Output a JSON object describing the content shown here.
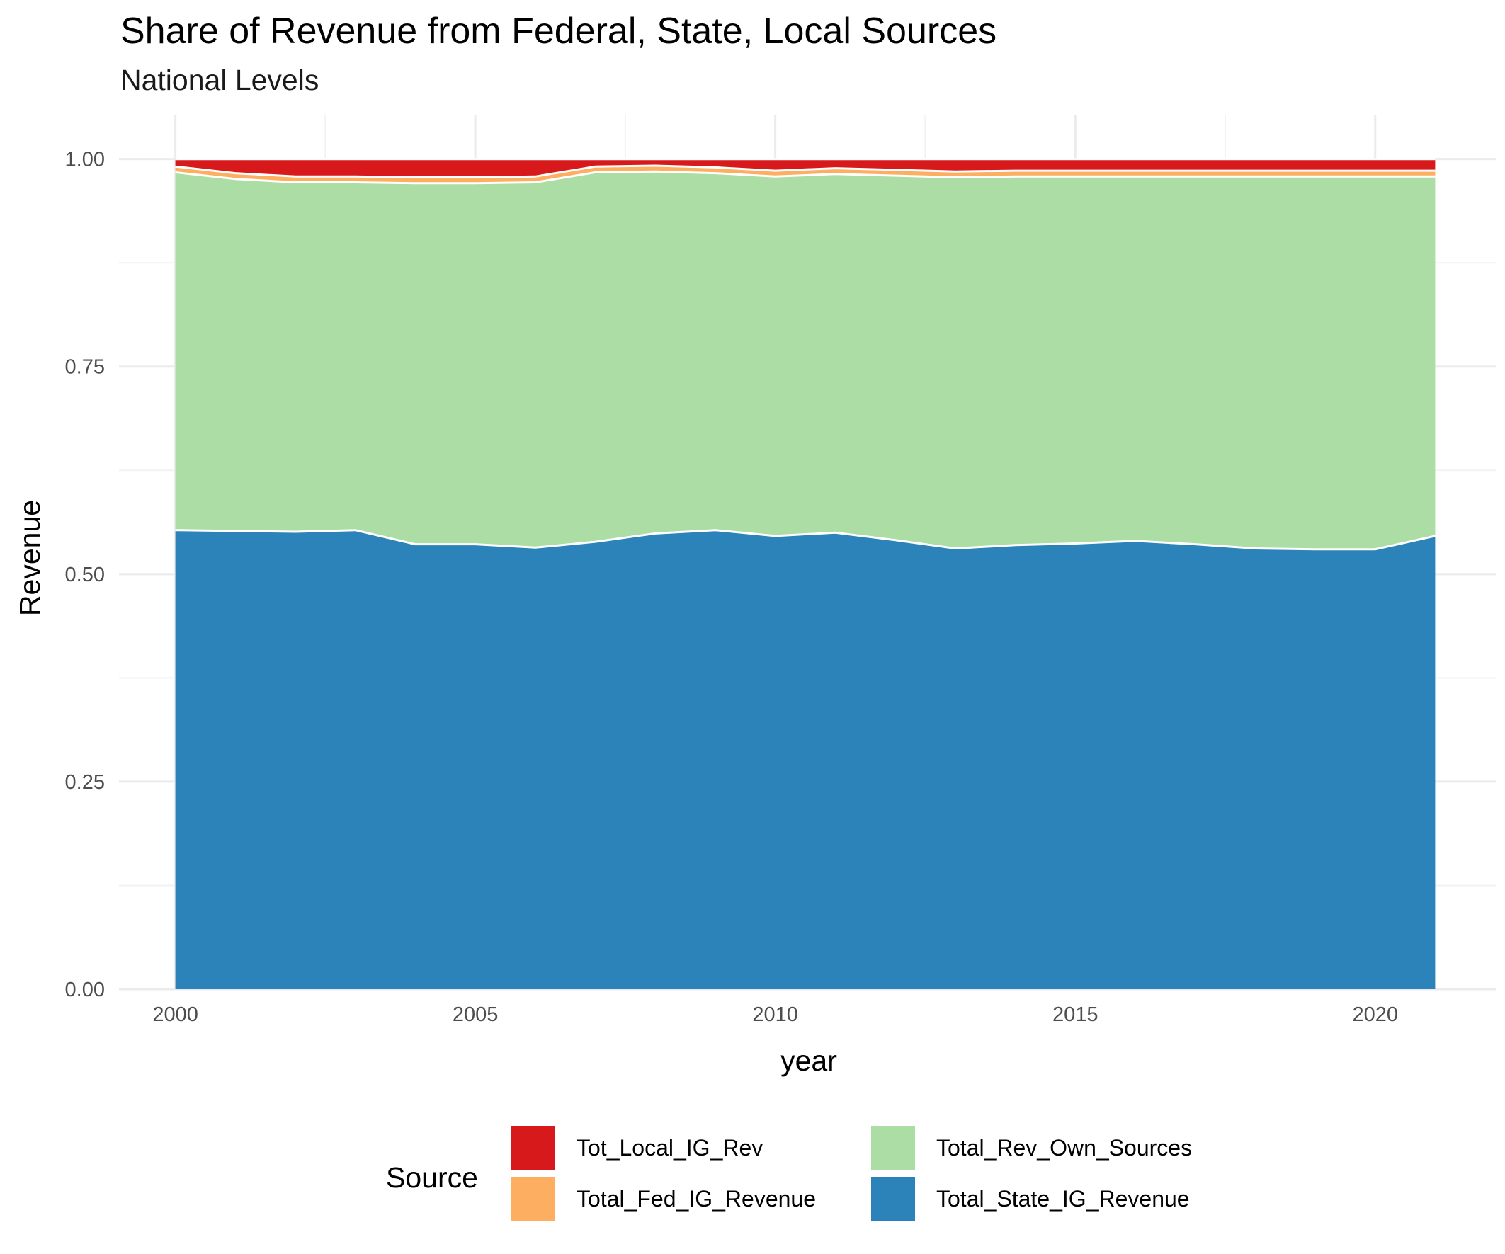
{
  "title": "Share of Revenue from Federal, State, Local Sources",
  "subtitle": "National Levels",
  "legend": {
    "title": "Source",
    "items": [
      {
        "label": "Tot_Local_IG_Rev",
        "color": "#d7191c"
      },
      {
        "label": "Total_Fed_IG_Revenue",
        "color": "#fdae61"
      },
      {
        "label": "Total_Rev_Own_Sources",
        "color": "#abdda4"
      },
      {
        "label": "Total_State_IG_Revenue",
        "color": "#2b83ba"
      }
    ]
  },
  "chart_data": {
    "type": "area",
    "stacked": true,
    "title": "Share of Revenue from Federal, State, Local Sources",
    "subtitle": "National Levels",
    "xlabel": "year",
    "ylabel": "Revenue",
    "xlim": [
      2000,
      2021
    ],
    "ylim": [
      0,
      1
    ],
    "x_ticks": [
      2000,
      2005,
      2010,
      2015,
      2020
    ],
    "y_ticks": [
      "0.00",
      "0.25",
      "0.50",
      "0.75",
      "1.00"
    ],
    "grid": true,
    "legend_position": "bottom",
    "x": [
      2000,
      2001,
      2002,
      2003,
      2004,
      2005,
      2006,
      2007,
      2008,
      2009,
      2010,
      2011,
      2012,
      2013,
      2014,
      2015,
      2016,
      2017,
      2018,
      2019,
      2020,
      2021
    ],
    "series": [
      {
        "name": "Total_State_IG_Revenue",
        "color": "#2b83ba",
        "values": [
          0.553,
          0.552,
          0.551,
          0.553,
          0.536,
          0.536,
          0.532,
          0.539,
          0.549,
          0.553,
          0.546,
          0.55,
          0.541,
          0.531,
          0.535,
          0.537,
          0.54,
          0.536,
          0.531,
          0.53,
          0.53,
          0.546
        ]
      },
      {
        "name": "Total_Rev_Own_Sources",
        "color": "#abdda4",
        "values": [
          0.431,
          0.424,
          0.421,
          0.419,
          0.435,
          0.435,
          0.44,
          0.445,
          0.436,
          0.43,
          0.433,
          0.432,
          0.439,
          0.447,
          0.444,
          0.442,
          0.439,
          0.443,
          0.448,
          0.449,
          0.449,
          0.433
        ]
      },
      {
        "name": "Total_Fed_IG_Revenue",
        "color": "#fdae61",
        "values": [
          0.007,
          0.007,
          0.007,
          0.007,
          0.007,
          0.007,
          0.007,
          0.007,
          0.007,
          0.007,
          0.007,
          0.007,
          0.007,
          0.007,
          0.007,
          0.007,
          0.007,
          0.007,
          0.007,
          0.007,
          0.007,
          0.007
        ]
      },
      {
        "name": "Tot_Local_IG_Rev",
        "color": "#d7191c",
        "values": [
          0.009,
          0.017,
          0.021,
          0.021,
          0.022,
          0.022,
          0.021,
          0.009,
          0.008,
          0.01,
          0.014,
          0.011,
          0.013,
          0.015,
          0.014,
          0.014,
          0.014,
          0.014,
          0.014,
          0.014,
          0.014,
          0.014
        ]
      }
    ]
  }
}
